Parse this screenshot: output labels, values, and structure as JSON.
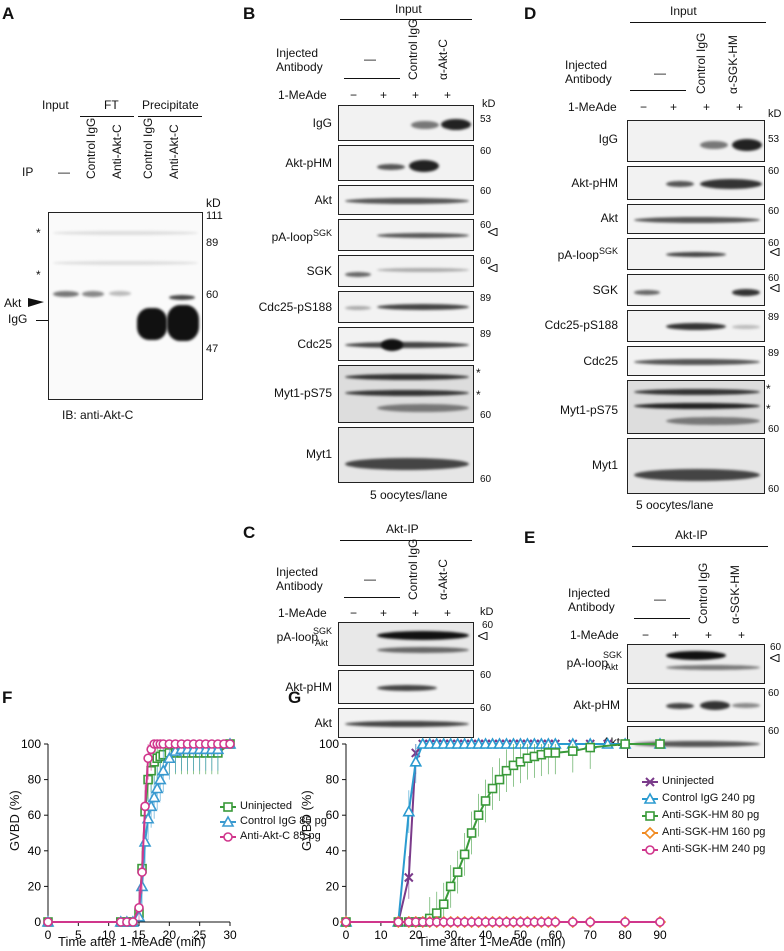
{
  "panels": {
    "A": "A",
    "B": "B",
    "C": "C",
    "D": "D",
    "E": "E",
    "F": "F",
    "G": "G"
  },
  "panelA": {
    "headers": {
      "input": "Input",
      "ft": "FT",
      "precipitate": "Precipitate"
    },
    "ip_label": "IP",
    "lanes": [
      "—",
      "Control IgG",
      "Anti-Akt-C",
      "Control IgG",
      "Anti-Akt-C"
    ],
    "kd": "kD",
    "markers": [
      "111",
      "89",
      "60",
      "47"
    ],
    "akt_label": "Akt",
    "igg_label": "IgG",
    "star": "*",
    "caption": "IB: anti-Akt-C"
  },
  "panelB": {
    "input": "Input",
    "injected": "Injected",
    "antibody": "Antibody",
    "lanes": [
      "—",
      "Control IgG",
      "α-Akt-C"
    ],
    "mead": "1-MeAde",
    "signs": [
      "−",
      "+",
      "+",
      "+"
    ],
    "kd": "kD",
    "rows": [
      "IgG",
      "Akt-pHM",
      "Akt",
      "pA-loop",
      "SGK",
      "Cdc25-pS188",
      "Cdc25",
      "Myt1-pS75",
      "Myt1"
    ],
    "sgk_sup": "SGK",
    "mw": [
      "53",
      "60",
      "60",
      "60",
      "60",
      "89",
      "89",
      "60",
      "60"
    ],
    "caption": "5 oocytes/lane"
  },
  "panelC": {
    "header": "Akt-IP",
    "rows": [
      "pA-loop",
      "Akt-pHM",
      "Akt"
    ],
    "sub_sgk": "SGK",
    "sub_akt": "Akt",
    "mw": [
      "60",
      "60",
      "60"
    ]
  },
  "panelD": {
    "lanes": [
      "—",
      "Control IgG",
      "α-SGK-HM"
    ]
  },
  "panelF": {
    "ylabel": "GVBD (%)",
    "xlabel": "Time after 1-MeAde (min)",
    "legend": [
      "Uninjected",
      "Control IgG 85 pg",
      "Anti-Akt-C 85 pg"
    ]
  },
  "panelG": {
    "ylabel": "GVBD (%)",
    "xlabel": "Time after 1-MeAde (min)",
    "legend": [
      "Uninjected",
      "Control IgG 240 pg",
      "Anti-SGK-HM 80 pg",
      "Anti-SGK-HM 160 pg",
      "Anti-SGK-HM 240 pg"
    ]
  },
  "chart_data": [
    {
      "type": "line",
      "xlabel": "Time after 1-MeAde (min)",
      "ylabel": "GVBD (%)",
      "xlim": [
        0,
        30
      ],
      "ylim": [
        0,
        100
      ],
      "xticks": [
        0,
        5,
        10,
        15,
        20,
        25,
        30
      ],
      "yticks": [
        0,
        20,
        40,
        60,
        80,
        100
      ],
      "series": [
        {
          "name": "Uninjected",
          "color": "#3a9a3a",
          "marker": "square",
          "x": [
            0,
            12,
            13,
            14,
            15,
            15.5,
            16,
            16.5,
            17,
            17.5,
            18,
            18.5,
            19,
            20,
            21,
            22,
            23,
            24,
            25,
            26,
            27,
            28,
            30
          ],
          "y": [
            0,
            0,
            0,
            0,
            5,
            30,
            62,
            80,
            85,
            90,
            92,
            93,
            94,
            95,
            95,
            95,
            95,
            95,
            95,
            95,
            95,
            95,
            100
          ]
        },
        {
          "name": "Control IgG 85 pg",
          "color": "#3a9ad0",
          "marker": "triangle",
          "x": [
            0,
            12,
            13,
            14,
            15,
            15.5,
            16,
            16.5,
            17,
            17.5,
            18,
            18.5,
            19,
            20,
            21,
            22,
            23,
            24,
            25,
            26,
            27,
            28,
            30
          ],
          "y": [
            0,
            0,
            0,
            0,
            3,
            20,
            45,
            58,
            65,
            70,
            75,
            80,
            85,
            92,
            96,
            97,
            97,
            97,
            97,
            97,
            97,
            97,
            100
          ]
        },
        {
          "name": "Anti-Akt-C 85 pg",
          "color": "#d0368c",
          "marker": "circle",
          "x": [
            0,
            12,
            13,
            14,
            15,
            15.5,
            16,
            16.5,
            17,
            17.5,
            18,
            18.5,
            19,
            20,
            21,
            22,
            23,
            24,
            25,
            26,
            27,
            28,
            29,
            30
          ],
          "y": [
            0,
            0,
            0,
            0,
            8,
            28,
            65,
            92,
            97,
            100,
            100,
            100,
            100,
            100,
            100,
            100,
            100,
            100,
            100,
            100,
            100,
            100,
            100,
            100
          ]
        }
      ]
    },
    {
      "type": "line",
      "xlabel": "Time after 1-MeAde (min)",
      "ylabel": "GVBD (%)",
      "xlim": [
        0,
        90
      ],
      "ylim": [
        0,
        100
      ],
      "xticks": [
        0,
        10,
        20,
        30,
        40,
        50,
        60,
        70,
        80,
        90
      ],
      "yticks": [
        0,
        20,
        40,
        60,
        80,
        100
      ],
      "series": [
        {
          "name": "Uninjected",
          "color": "#7a3a8a",
          "marker": "x",
          "x": [
            0,
            15,
            18,
            20,
            22,
            24,
            26,
            28,
            30,
            32,
            34,
            36,
            38,
            40,
            42,
            44,
            46,
            48,
            50,
            52,
            54,
            56,
            58,
            60,
            65,
            70,
            75,
            80,
            90
          ],
          "y": [
            0,
            0,
            25,
            95,
            100,
            100,
            100,
            100,
            100,
            100,
            100,
            100,
            100,
            100,
            100,
            100,
            100,
            100,
            100,
            100,
            100,
            100,
            100,
            100,
            100,
            100,
            100,
            100,
            100
          ]
        },
        {
          "name": "Control IgG 240 pg",
          "color": "#2b9bd0",
          "marker": "triangle",
          "x": [
            0,
            15,
            18,
            20,
            22,
            24,
            26,
            28,
            30,
            32,
            34,
            36,
            38,
            40,
            42,
            44,
            46,
            48,
            50,
            52,
            54,
            56,
            58,
            60,
            65,
            70,
            75,
            80,
            90
          ],
          "y": [
            0,
            0,
            62,
            90,
            100,
            100,
            100,
            100,
            100,
            100,
            100,
            100,
            100,
            100,
            100,
            100,
            100,
            100,
            100,
            100,
            100,
            100,
            100,
            100,
            100,
            100,
            100,
            100,
            100
          ]
        },
        {
          "name": "Anti-SGK-HM 80 pg",
          "color": "#3a9a3a",
          "marker": "square",
          "x": [
            0,
            15,
            18,
            20,
            22,
            24,
            26,
            28,
            30,
            32,
            34,
            36,
            38,
            40,
            42,
            44,
            46,
            48,
            50,
            52,
            54,
            56,
            58,
            60,
            65,
            70,
            80,
            90
          ],
          "y": [
            0,
            0,
            0,
            0,
            0,
            2,
            5,
            10,
            20,
            28,
            38,
            50,
            60,
            68,
            75,
            80,
            85,
            88,
            90,
            92,
            93,
            94,
            95,
            95,
            96,
            98,
            100,
            100
          ]
        },
        {
          "name": "Anti-SGK-HM 160 pg",
          "color": "#f08a20",
          "marker": "diamond",
          "x": [
            0,
            15,
            18,
            20,
            22,
            24,
            26,
            28,
            30,
            32,
            34,
            36,
            38,
            40,
            42,
            44,
            46,
            48,
            50,
            52,
            54,
            56,
            58,
            60,
            65,
            70,
            80,
            90
          ],
          "y": [
            0,
            0,
            0,
            0,
            0,
            0,
            0,
            0,
            0,
            0,
            0,
            0,
            0,
            0,
            0,
            0,
            0,
            0,
            0,
            0,
            0,
            0,
            0,
            0,
            0,
            0,
            0,
            0
          ]
        },
        {
          "name": "Anti-SGK-HM 240 pg",
          "color": "#d0368c",
          "marker": "circle",
          "x": [
            0,
            15,
            18,
            20,
            22,
            24,
            26,
            28,
            30,
            32,
            34,
            36,
            38,
            40,
            42,
            44,
            46,
            48,
            50,
            52,
            54,
            56,
            58,
            60,
            65,
            70,
            80,
            90
          ],
          "y": [
            0,
            0,
            0,
            0,
            0,
            0,
            0,
            0,
            0,
            0,
            0,
            0,
            0,
            0,
            0,
            0,
            0,
            0,
            0,
            0,
            0,
            0,
            0,
            0,
            0,
            0,
            0,
            0
          ]
        }
      ]
    }
  ]
}
